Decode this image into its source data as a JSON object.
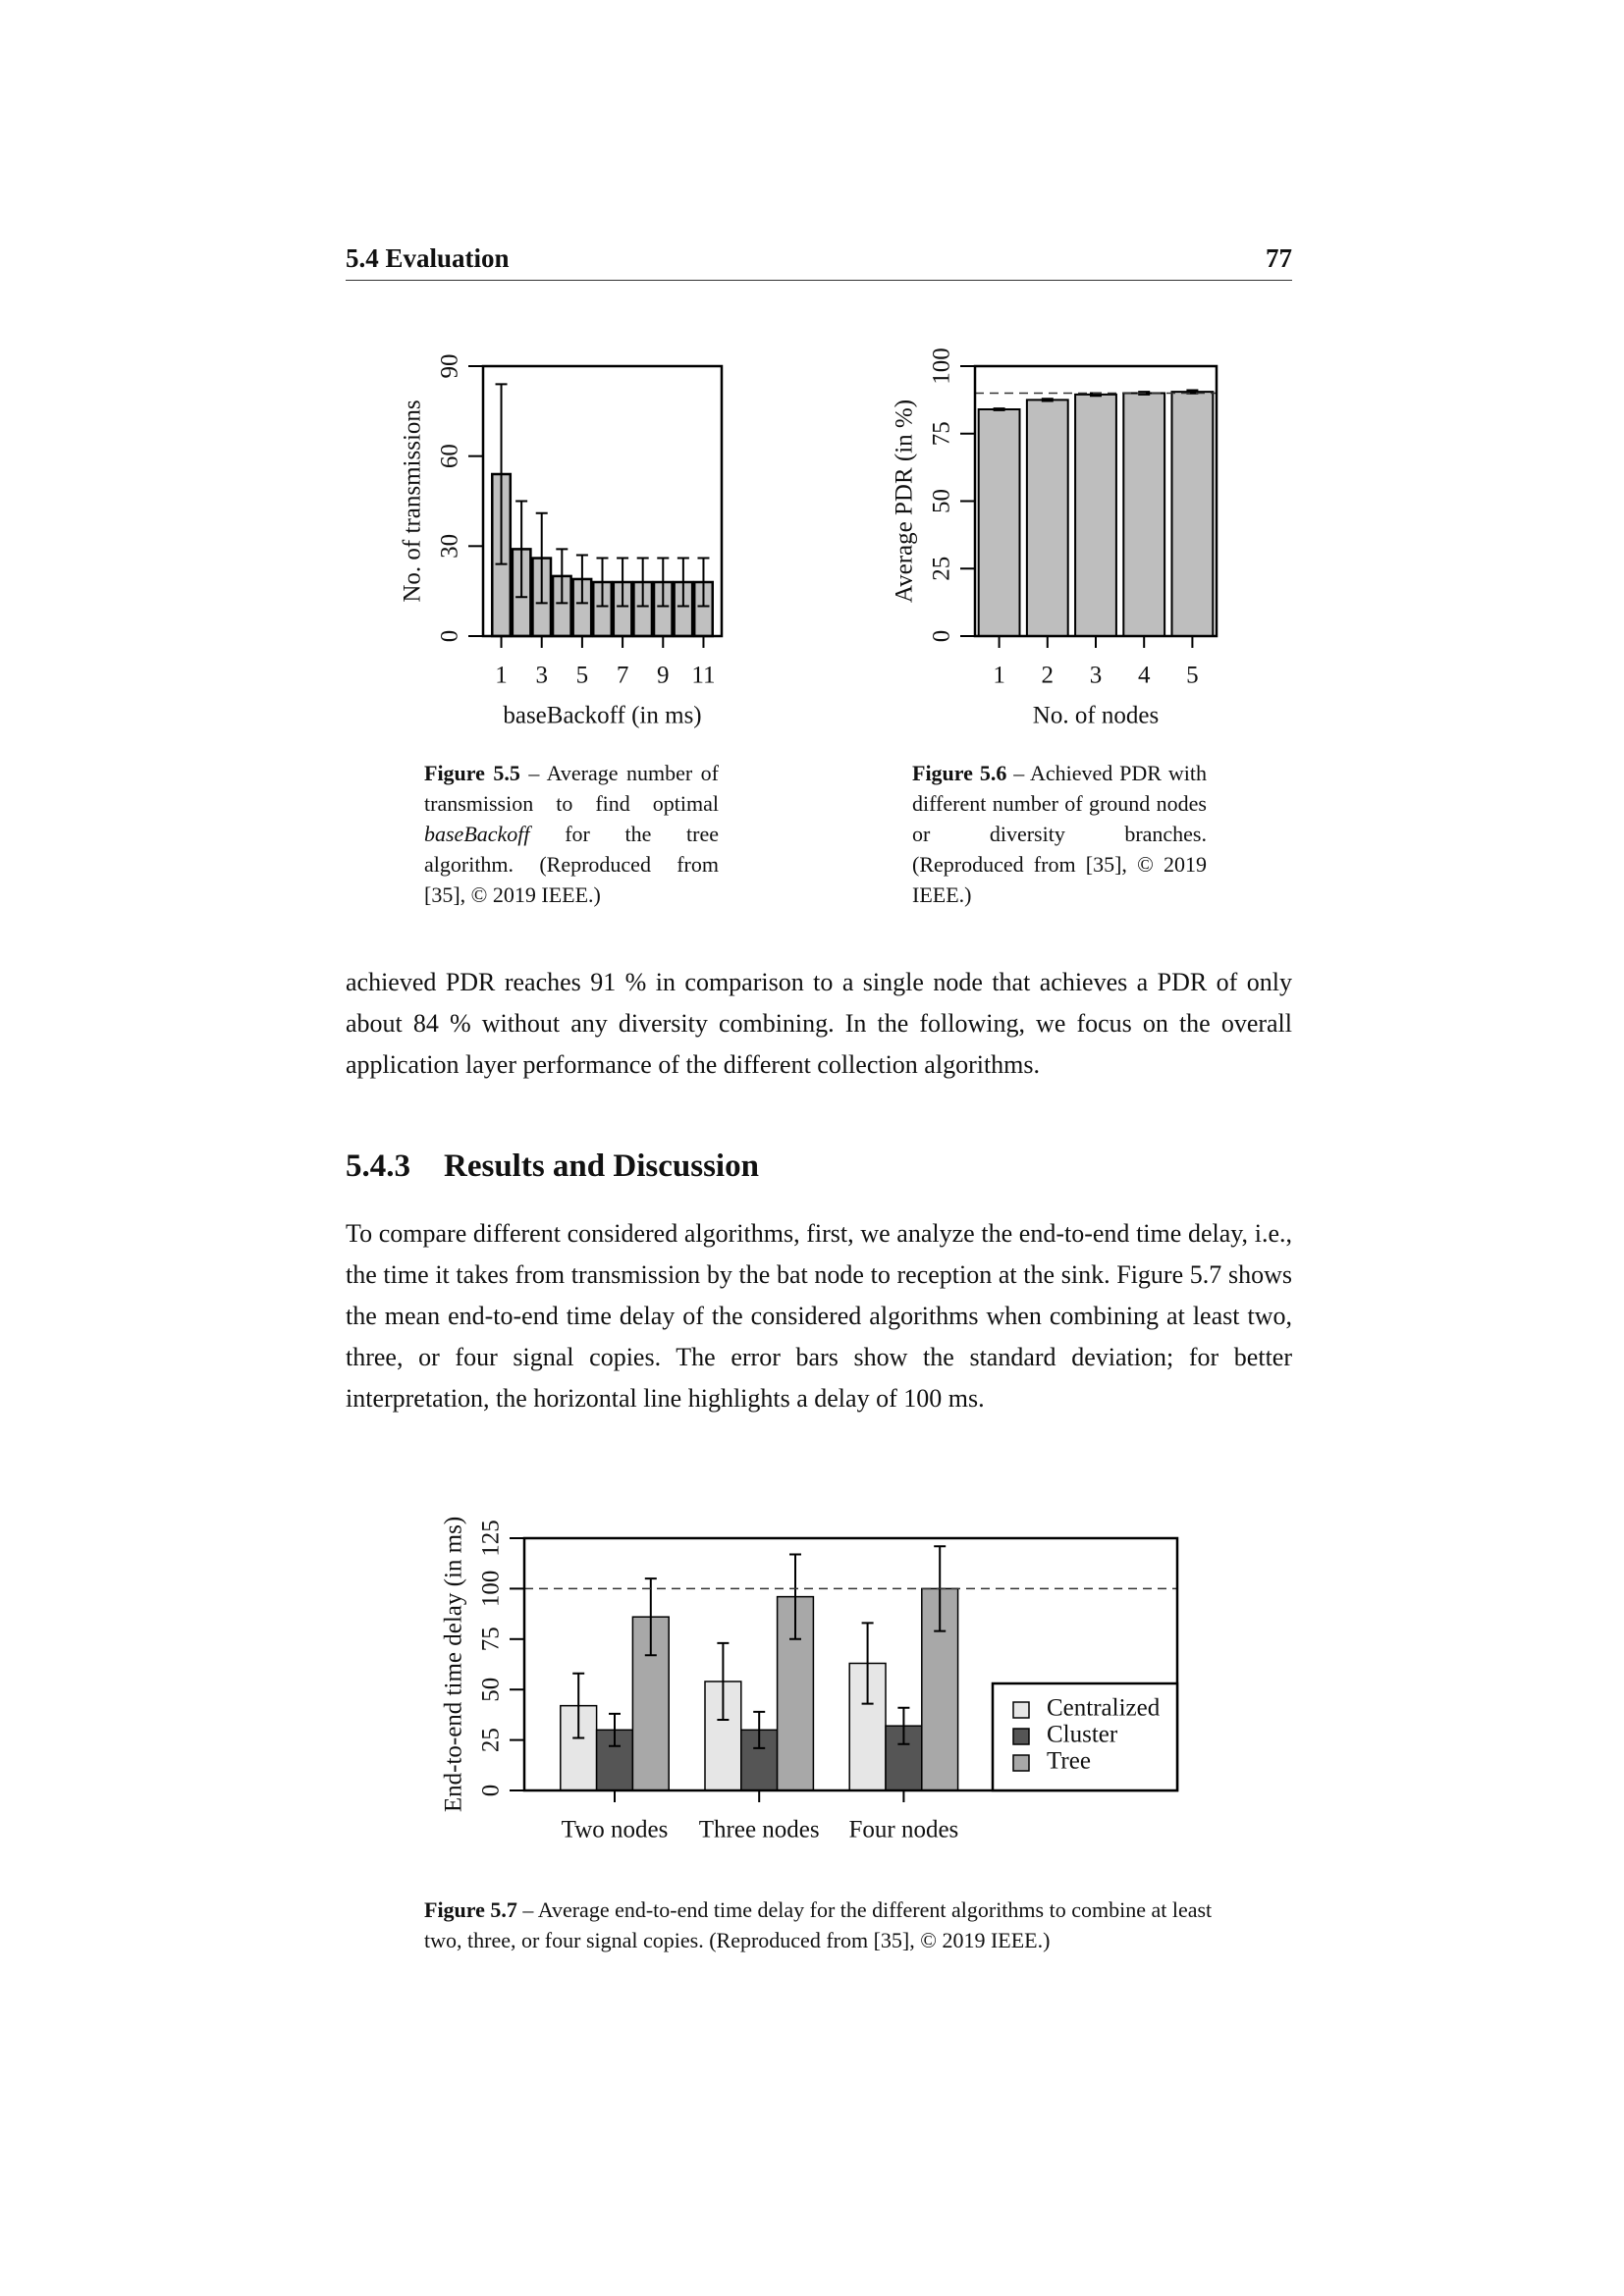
{
  "header": {
    "section": "5.4 Evaluation",
    "page": "77"
  },
  "chart_data": [
    {
      "type": "bar",
      "ylabel": "No. of transmissions",
      "xlabel": "baseBackoff (in ms)",
      "x": [
        1,
        2,
        3,
        4,
        5,
        6,
        7,
        8,
        9,
        10,
        11
      ],
      "values": [
        54,
        29,
        26,
        20,
        19,
        18,
        18,
        18,
        18,
        18,
        18
      ],
      "errors": [
        30,
        16,
        15,
        9,
        8,
        8,
        8,
        8,
        8,
        8,
        8
      ],
      "color": "#c0c0c0",
      "xlim": [
        0.1,
        11.9
      ],
      "xticks": [
        1,
        3,
        5,
        7,
        9,
        11
      ],
      "ylim": [
        0,
        90
      ],
      "yticks": [
        0,
        30,
        60,
        90
      ]
    },
    {
      "type": "bar",
      "ylabel": "Average PDR (in %)",
      "xlabel": "No. of nodes",
      "categories": [
        "1",
        "2",
        "3",
        "4",
        "5"
      ],
      "values": [
        84,
        87.5,
        89.5,
        90,
        90.5
      ],
      "errors": [
        0.3,
        0.4,
        0.5,
        0.5,
        0.6
      ],
      "color": "#bebebe",
      "ylim": [
        0,
        100
      ],
      "yticks": [
        0,
        25,
        50,
        75,
        100
      ],
      "reference_line": 90
    },
    {
      "type": "bar",
      "ylabel": "End-to-end time delay (in ms)",
      "categories": [
        "Two nodes",
        "Three nodes",
        "Four nodes"
      ],
      "series": [
        {
          "name": "Centralized",
          "color": "#e6e6e6",
          "values": [
            42,
            54,
            63
          ],
          "errors": [
            16,
            19,
            20
          ]
        },
        {
          "name": "Cluster",
          "color": "#555555",
          "values": [
            30,
            30,
            32
          ],
          "errors": [
            8,
            9,
            9
          ]
        },
        {
          "name": "Tree",
          "color": "#a8a8a8",
          "values": [
            86,
            96,
            100
          ],
          "errors": [
            19,
            21,
            21
          ]
        }
      ],
      "ylim": [
        0,
        125
      ],
      "yticks": [
        0,
        25,
        50,
        75,
        100,
        125
      ],
      "reference_line": 100,
      "legend": "lower right"
    }
  ],
  "captions": [
    {
      "label": "Figure 5.5",
      "parts": [
        " – Average number of transmission to find optimal ",
        "baseBackoff",
        " for the tree algorithm. (Reproduced from [35], © 2019 IEEE.)"
      ]
    },
    {
      "label": "Figure 5.6",
      "parts": [
        " – Achieved PDR with different number of ground nodes or diversity branches. (Reproduced from [35], © 2019 IEEE.)"
      ]
    },
    {
      "label": "Figure 5.7",
      "parts": [
        " – Average end-to-end time delay for the different algorithms to combine at least two, three, or four signal copies. (Reproduced from [35], © 2019 IEEE.)"
      ]
    }
  ],
  "paragraphs": [
    "achieved PDR reaches 91 % in comparison to a single node that achieves a PDR of only about 84 % without any diversity combining. In the following, we focus on the overall application layer performance of the different collection algorithms.",
    "To compare different considered algorithms, first, we analyze the end-to-end time delay, i.e., the time it takes from transmission by the bat node to reception at the sink. Figure 5.7 shows the mean end-to-end time delay of the considered algorithms when combining at least two, three, or four signal copies. The error bars show the standard deviation; for better interpretation, the horizontal line highlights a delay of 100 ms."
  ],
  "section": {
    "number": "5.4.3",
    "title": "Results and Discussion"
  }
}
